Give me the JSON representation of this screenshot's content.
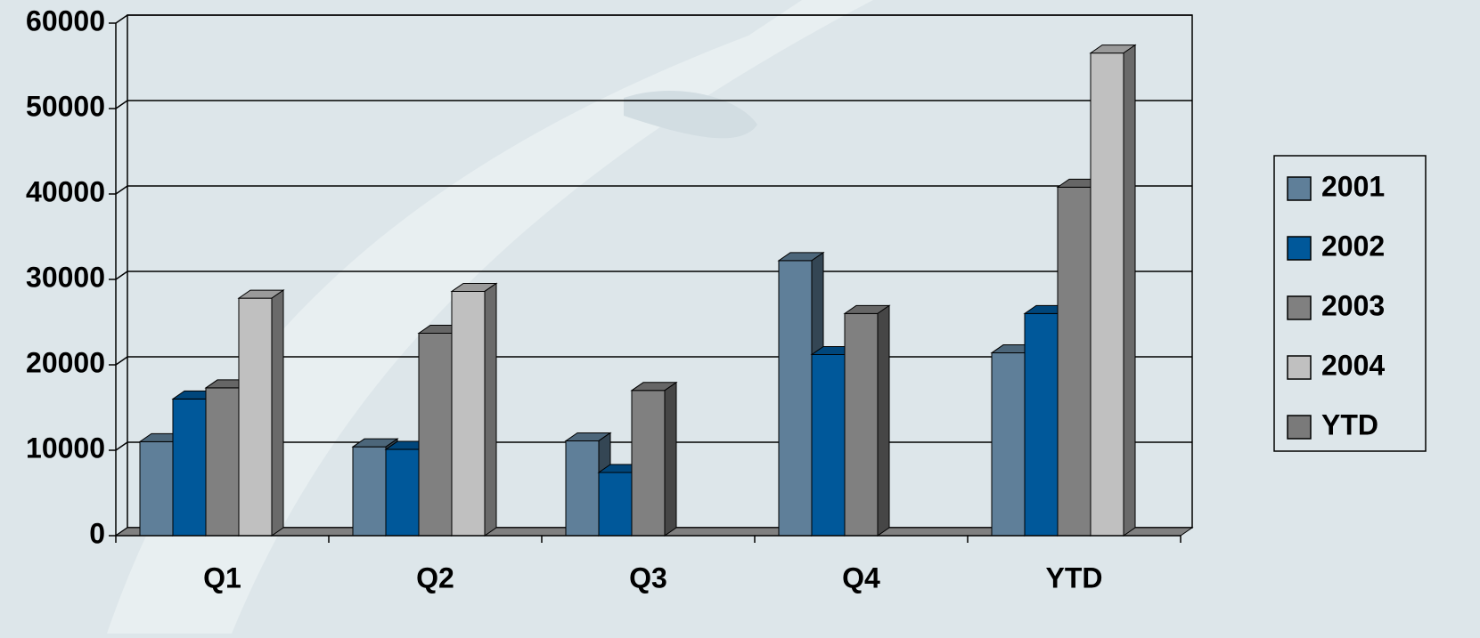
{
  "chart_data": {
    "type": "bar3d",
    "categories": [
      "Q1",
      "Q2",
      "Q3",
      "Q4",
      "YTD"
    ],
    "series": [
      {
        "name": "2001",
        "color": "#5f7f99",
        "values": [
          11000,
          10400,
          11100,
          32200,
          21400
        ]
      },
      {
        "name": "2002",
        "color": "#00589a",
        "values": [
          16000,
          10100,
          7400,
          21200,
          26000
        ]
      },
      {
        "name": "2003",
        "color": "#808080",
        "values": [
          17300,
          23700,
          17000,
          26000,
          40800
        ]
      },
      {
        "name": "2004",
        "color": "#c0c0c0",
        "values": [
          27800,
          28600,
          null,
          null,
          56500
        ]
      },
      {
        "name": "YTD",
        "color": "#7a7a7a",
        "values": [
          null,
          null,
          null,
          null,
          null
        ]
      }
    ],
    "ylim": [
      0,
      60000
    ],
    "yticks": [
      0,
      10000,
      20000,
      30000,
      40000,
      50000,
      60000
    ],
    "grid": true,
    "legend": "right"
  }
}
